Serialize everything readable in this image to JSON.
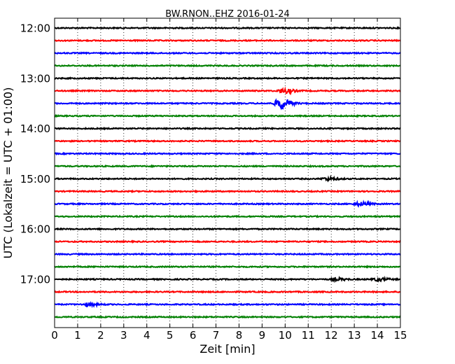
{
  "chart_data": {
    "type": "line",
    "title": "BW.RNON..EHZ 2016-01-24",
    "xlabel": "Zeit  [min]",
    "ylabel": "UTC (Lokalzeit = UTC + 01:00)",
    "xlim": [
      0,
      15
    ],
    "x_ticks": [
      "0",
      "1",
      "2",
      "3",
      "4",
      "5",
      "6",
      "7",
      "8",
      "9",
      "10",
      "11",
      "12",
      "13",
      "14",
      "15"
    ],
    "y_ticks": [
      "12:00",
      "13:00",
      "14:00",
      "15:00",
      "16:00",
      "17:00"
    ],
    "grid": "vertical dotted",
    "trace_colors": [
      "#000000",
      "#ff0000",
      "#0000ff",
      "#008000"
    ],
    "traces": [
      {
        "start": "12:00",
        "color": "#000000",
        "events": []
      },
      {
        "start": "12:15",
        "color": "#ff0000",
        "events": []
      },
      {
        "start": "12:30",
        "color": "#0000ff",
        "events": []
      },
      {
        "start": "12:45",
        "color": "#008000",
        "events": []
      },
      {
        "start": "13:00",
        "color": "#000000",
        "events": []
      },
      {
        "start": "13:15",
        "color": "#ff0000",
        "events": [
          {
            "minute": 10.0,
            "amplitude": 0.4
          }
        ]
      },
      {
        "start": "13:30",
        "color": "#0000ff",
        "events": [
          {
            "minute": 9.85,
            "amplitude": 1.0
          }
        ]
      },
      {
        "start": "13:45",
        "color": "#008000",
        "events": []
      },
      {
        "start": "14:00",
        "color": "#000000",
        "events": []
      },
      {
        "start": "14:15",
        "color": "#ff0000",
        "events": []
      },
      {
        "start": "14:30",
        "color": "#0000ff",
        "events": []
      },
      {
        "start": "14:45",
        "color": "#008000",
        "events": []
      },
      {
        "start": "15:00",
        "color": "#000000",
        "events": [
          {
            "minute": 11.9,
            "amplitude": 0.25
          }
        ]
      },
      {
        "start": "15:15",
        "color": "#ff0000",
        "events": []
      },
      {
        "start": "15:30",
        "color": "#0000ff",
        "events": [
          {
            "minute": 13.3,
            "amplitude": 0.3
          }
        ]
      },
      {
        "start": "15:45",
        "color": "#008000",
        "events": []
      },
      {
        "start": "16:00",
        "color": "#000000",
        "events": []
      },
      {
        "start": "16:15",
        "color": "#ff0000",
        "events": []
      },
      {
        "start": "16:30",
        "color": "#0000ff",
        "events": []
      },
      {
        "start": "16:45",
        "color": "#008000",
        "events": []
      },
      {
        "start": "17:00",
        "color": "#000000",
        "events": [
          {
            "minute": 12.3,
            "amplitude": 0.2
          },
          {
            "minute": 14.1,
            "amplitude": 0.25
          }
        ]
      },
      {
        "start": "17:15",
        "color": "#ff0000",
        "events": []
      },
      {
        "start": "17:30",
        "color": "#0000ff",
        "events": [
          {
            "minute": 1.5,
            "amplitude": 0.25
          }
        ]
      },
      {
        "start": "17:45",
        "color": "#008000",
        "events": []
      }
    ]
  }
}
